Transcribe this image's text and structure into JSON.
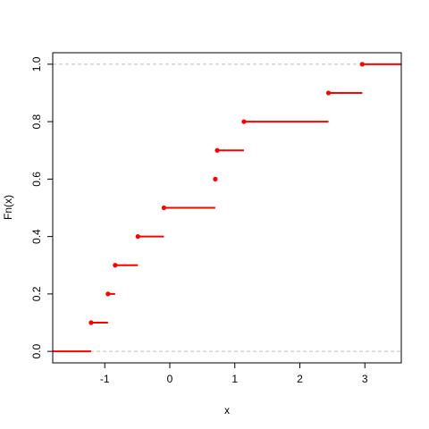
{
  "chart_data": {
    "type": "line",
    "subtype": "ecdf-step",
    "xlabel": "x",
    "ylabel": "Fn(x)",
    "xlim": [
      -1.8,
      3.56
    ],
    "ylim": [
      -0.04,
      1.04
    ],
    "x_ticks": [
      -1,
      0,
      1,
      2,
      3
    ],
    "x_tick_labels": [
      "-1",
      "0",
      "1",
      "2",
      "3"
    ],
    "y_ticks": [
      0.0,
      0.2,
      0.4,
      0.6,
      0.8,
      1.0
    ],
    "y_tick_labels": [
      "0.0",
      "0.2",
      "0.4",
      "0.6",
      "0.8",
      "1.0"
    ],
    "reference_lines": [
      0,
      1
    ],
    "points": [
      {
        "x": -1.21,
        "y": 0.1
      },
      {
        "x": -0.95,
        "y": 0.2
      },
      {
        "x": -0.84,
        "y": 0.3
      },
      {
        "x": -0.49,
        "y": 0.4
      },
      {
        "x": -0.09,
        "y": 0.5
      },
      {
        "x": 0.7,
        "y": 0.6
      },
      {
        "x": 0.73,
        "y": 0.7
      },
      {
        "x": 1.14,
        "y": 0.8
      },
      {
        "x": 2.44,
        "y": 0.9
      },
      {
        "x": 2.96,
        "y": 1.0
      }
    ],
    "colors": {
      "series": "#ff0000",
      "reference": "#bebebe"
    },
    "grid": false
  }
}
